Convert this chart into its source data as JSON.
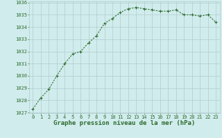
{
  "x": [
    0,
    1,
    2,
    3,
    4,
    5,
    6,
    7,
    8,
    9,
    10,
    11,
    12,
    13,
    14,
    15,
    16,
    17,
    18,
    19,
    20,
    21,
    22,
    23
  ],
  "y": [
    1027.3,
    1028.2,
    1028.9,
    1030.0,
    1031.0,
    1031.8,
    1032.0,
    1032.7,
    1033.3,
    1034.3,
    1034.7,
    1035.2,
    1035.5,
    1035.6,
    1035.5,
    1035.4,
    1035.3,
    1035.3,
    1035.4,
    1035.0,
    1035.0,
    1034.9,
    1035.0,
    1034.4
  ],
  "line_color": "#2d6a2d",
  "marker": "+",
  "background_color": "#d0ecec",
  "grid_color": "#b0cccc",
  "xlabel": "Graphe pression niveau de la mer (hPa)",
  "xlabel_color": "#2d6a2d",
  "ylabel_ticks": [
    1027,
    1028,
    1029,
    1030,
    1031,
    1032,
    1033,
    1034,
    1035,
    1036
  ],
  "ylim": [
    1027,
    1036
  ],
  "xlim": [
    -0.5,
    23.5
  ],
  "xticks": [
    0,
    1,
    2,
    3,
    4,
    5,
    6,
    7,
    8,
    9,
    10,
    11,
    12,
    13,
    14,
    15,
    16,
    17,
    18,
    19,
    20,
    21,
    22,
    23
  ],
  "tick_color": "#2d6a2d",
  "tick_fontsize": 5.0,
  "xlabel_fontsize": 6.5,
  "xlabel_bold": true,
  "linewidth": 0.8,
  "markersize": 2.5
}
